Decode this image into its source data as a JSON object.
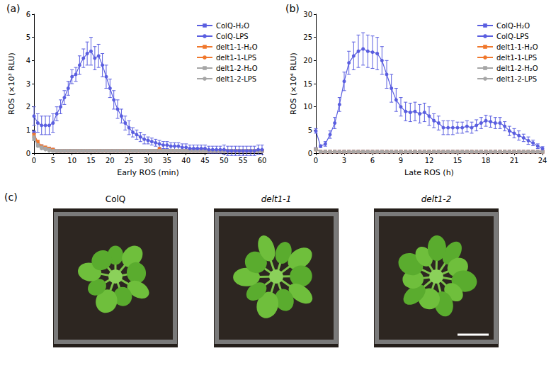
{
  "chart_data": [
    {
      "type": "line",
      "title": "(a)",
      "x_label": "Early ROS (min)",
      "y_label": "ROS (×10³ RLU)",
      "xlim": [
        0,
        60
      ],
      "xticks": [
        0,
        5,
        10,
        15,
        20,
        25,
        30,
        35,
        40,
        45,
        50,
        55,
        60
      ],
      "ylim": [
        0,
        6
      ],
      "yticks": [
        0,
        1,
        2,
        3,
        4,
        5,
        6
      ],
      "grid": false,
      "legend": "upper right",
      "x": [
        0,
        1,
        2,
        3,
        4,
        5,
        6,
        7,
        8,
        9,
        10,
        11,
        12,
        13,
        14,
        15,
        16,
        17,
        18,
        19,
        20,
        21,
        22,
        23,
        24,
        25,
        26,
        27,
        28,
        29,
        30,
        31,
        32,
        33,
        34,
        35,
        36,
        37,
        38,
        39,
        40,
        41,
        42,
        43,
        44,
        45,
        46,
        47,
        48,
        49,
        50,
        51,
        52,
        53,
        54,
        55,
        56,
        57,
        58,
        59,
        60
      ],
      "series": [
        {
          "name": "ColQ-H₂O",
          "color": "#5a5ee0",
          "marker": "square",
          "values": [
            0.9,
            0.4,
            0.3,
            0.2,
            0.2,
            0.15,
            0.1,
            0.1,
            0.1,
            0.1,
            0.1,
            0.1,
            0.1,
            0.1,
            0.1,
            0.1,
            0.1,
            0.1,
            0.1,
            0.1,
            0.1,
            0.1,
            0.1,
            0.1,
            0.1,
            0.1,
            0.1,
            0.1,
            0.1,
            0.1,
            0.1,
            0.1,
            0.1,
            0.1,
            0.1,
            0.1,
            0.1,
            0.1,
            0.1,
            0.1,
            0.1,
            0.1,
            0.1,
            0.1,
            0.1,
            0.1,
            0.1,
            0.1,
            0.1,
            0.1,
            0.1,
            0.1,
            0.1,
            0.1,
            0.1,
            0.1,
            0.1,
            0.1,
            0.1,
            0.1,
            0.1
          ]
        },
        {
          "name": "ColQ-LPS",
          "color": "#5a5ee0",
          "marker": "circle",
          "values": [
            1.6,
            1.3,
            1.2,
            1.2,
            1.2,
            1.3,
            1.7,
            2.0,
            2.4,
            2.8,
            3.3,
            3.4,
            3.8,
            4.1,
            4.3,
            4.4,
            4.1,
            4.2,
            3.8,
            3.3,
            2.8,
            2.3,
            1.9,
            1.6,
            1.3,
            1.1,
            0.9,
            0.8,
            0.7,
            0.6,
            0.55,
            0.5,
            0.45,
            0.4,
            0.35,
            0.35,
            0.3,
            0.3,
            0.3,
            0.25,
            0.25,
            0.2,
            0.2,
            0.2,
            0.2,
            0.2,
            0.15,
            0.15,
            0.15,
            0.15,
            0.15,
            0.1,
            0.1,
            0.1,
            0.1,
            0.1,
            0.1,
            0.1,
            0.1,
            0.15,
            0.15
          ],
          "errors": [
            0.4,
            0.4,
            0.4,
            0.4,
            0.4,
            0.4,
            0.3,
            0.3,
            0.3,
            0.3,
            0.3,
            0.3,
            0.4,
            0.4,
            0.5,
            0.6,
            0.5,
            0.5,
            0.5,
            0.5,
            0.4,
            0.4,
            0.4,
            0.3,
            0.3,
            0.3,
            0.2,
            0.2,
            0.2,
            0.2,
            0.15,
            0.15,
            0.15,
            0.15,
            0.15,
            0.15,
            0.15,
            0.15,
            0.15,
            0.15,
            0.15,
            0.15,
            0.15,
            0.15,
            0.15,
            0.15,
            0.15,
            0.15,
            0.15,
            0.15,
            0.2,
            0.2,
            0.2,
            0.2,
            0.2,
            0.2,
            0.2,
            0.2,
            0.2,
            0.2,
            0.2
          ]
        },
        {
          "name": "delt1-1-H₂O",
          "color": "#f0782d",
          "marker": "square",
          "values": [
            0.8,
            0.5,
            0.3,
            0.25,
            0.2,
            0.15,
            0.1,
            0.1,
            0.1,
            0.1,
            0.1,
            0.1,
            0.1,
            0.1,
            0.1,
            0.1,
            0.1,
            0.1,
            0.1,
            0.1,
            0.1,
            0.1,
            0.1,
            0.1,
            0.1,
            0.1,
            0.1,
            0.1,
            0.1,
            0.1,
            0.1,
            0.1,
            0.1,
            0.1,
            0.1,
            0.1,
            0.1,
            0.1,
            0.1,
            0.1,
            0.1,
            0.1,
            0.1,
            0.1,
            0.1,
            0.1,
            0.1,
            0.1,
            0.1,
            0.1,
            0.1,
            0.1,
            0.1,
            0.1,
            0.1,
            0.1,
            0.1,
            0.1,
            0.1,
            0.1,
            0.1
          ]
        },
        {
          "name": "delt1-1-LPS",
          "color": "#f0782d",
          "marker": "circle",
          "values": [
            0.7,
            0.4,
            0.3,
            0.2,
            0.2,
            0.15,
            0.1,
            0.1,
            0.1,
            0.1,
            0.1,
            0.1,
            0.1,
            0.1,
            0.1,
            0.1,
            0.1,
            0.1,
            0.1,
            0.1,
            0.1,
            0.1,
            0.1,
            0.1,
            0.1,
            0.1,
            0.1,
            0.1,
            0.1,
            0.1,
            0.1,
            0.1,
            0.1,
            0.2,
            0.1,
            0.1,
            0.1,
            0.1,
            0.1,
            0.1,
            0.1,
            0.1,
            0.1,
            0.1,
            0.1,
            0.1,
            0.1,
            0.1,
            0.1,
            0.1,
            0.1,
            0.1,
            0.1,
            0.1,
            0.1,
            0.1,
            0.1,
            0.1,
            0.1,
            0.1,
            0.1
          ]
        },
        {
          "name": "delt1-2-H₂O",
          "color": "#a6a6a6",
          "marker": "square",
          "values": [
            0.6,
            0.35,
            0.25,
            0.2,
            0.15,
            0.1,
            0.1,
            0.1,
            0.1,
            0.1,
            0.1,
            0.1,
            0.1,
            0.1,
            0.1,
            0.1,
            0.1,
            0.1,
            0.1,
            0.1,
            0.1,
            0.1,
            0.1,
            0.1,
            0.1,
            0.1,
            0.1,
            0.1,
            0.1,
            0.1,
            0.1,
            0.1,
            0.1,
            0.1,
            0.1,
            0.1,
            0.1,
            0.1,
            0.1,
            0.1,
            0.1,
            0.1,
            0.1,
            0.1,
            0.1,
            0.1,
            0.1,
            0.1,
            0.1,
            0.1,
            0.1,
            0.1,
            0.1,
            0.1,
            0.1,
            0.1,
            0.1,
            0.1,
            0.1,
            0.1,
            0.1
          ]
        },
        {
          "name": "delt1-2-LPS",
          "color": "#a6a6a6",
          "marker": "circle",
          "values": [
            0.7,
            0.3,
            0.2,
            0.15,
            0.1,
            0.1,
            0.1,
            0.1,
            0.1,
            0.1,
            0.1,
            0.1,
            0.1,
            0.1,
            0.1,
            0.1,
            0.1,
            0.1,
            0.1,
            0.1,
            0.1,
            0.1,
            0.1,
            0.1,
            0.1,
            0.1,
            0.1,
            0.1,
            0.1,
            0.1,
            0.1,
            0.1,
            0.1,
            0.1,
            0.1,
            0.1,
            0.1,
            0.1,
            0.1,
            0.1,
            0.1,
            0.1,
            0.1,
            0.1,
            0.1,
            0.1,
            0.1,
            0.1,
            0.1,
            0.1,
            0.1,
            0.1,
            0.1,
            0.1,
            0.1,
            0.1,
            0.1,
            0.1,
            0.1,
            0.1,
            0.1
          ]
        }
      ]
    },
    {
      "type": "line",
      "title": "(b)",
      "x_label": "Late ROS (h)",
      "y_label": "ROS (×10⁴ RLU)",
      "xlim": [
        0,
        24
      ],
      "xticks": [
        0,
        3,
        6,
        9,
        12,
        15,
        18,
        21,
        24
      ],
      "ylim": [
        0,
        30
      ],
      "yticks": [
        0,
        5,
        10,
        15,
        20,
        25,
        30
      ],
      "grid": false,
      "legend": "upper right",
      "x": [
        0,
        0.5,
        1,
        1.5,
        2,
        2.5,
        3,
        3.5,
        4,
        4.5,
        5,
        5.5,
        6,
        6.5,
        7,
        7.5,
        8,
        8.5,
        9,
        9.5,
        10,
        10.5,
        11,
        11.5,
        12,
        12.5,
        13,
        13.5,
        14,
        14.5,
        15,
        15.5,
        16,
        16.5,
        17,
        17.5,
        18,
        18.5,
        19,
        19.5,
        20,
        20.5,
        21,
        21.5,
        22,
        22.5,
        23,
        23.5,
        24
      ],
      "series": [
        {
          "name": "ColQ-H₂O",
          "color": "#5a5ee0",
          "marker": "square",
          "values": [
            0.9,
            0.3,
            0.3,
            0.3,
            0.3,
            0.3,
            0.3,
            0.3,
            0.3,
            0.3,
            0.3,
            0.3,
            0.3,
            0.3,
            0.3,
            0.3,
            0.3,
            0.3,
            0.3,
            0.3,
            0.3,
            0.3,
            0.3,
            0.3,
            0.3,
            0.3,
            0.3,
            0.3,
            0.3,
            0.3,
            0.3,
            0.3,
            0.3,
            0.3,
            0.3,
            0.3,
            0.3,
            0.3,
            0.3,
            0.3,
            0.3,
            0.3,
            0.3,
            0.3,
            0.3,
            0.3,
            0.3,
            0.3,
            0.3
          ]
        },
        {
          "name": "ColQ-LPS",
          "color": "#5a5ee0",
          "marker": "circle",
          "values": [
            4.8,
            1.5,
            2,
            4,
            6.5,
            10.5,
            15.5,
            19.5,
            21,
            22,
            22.5,
            22,
            21.8,
            21.5,
            20,
            17,
            14,
            11.5,
            10,
            9,
            8.8,
            9,
            8.5,
            8.8,
            8,
            7,
            6.5,
            5.5,
            5.5,
            5.5,
            5.5,
            5.5,
            5.8,
            5.5,
            6,
            6.5,
            7,
            6.8,
            6.5,
            6.5,
            5.8,
            4.8,
            4.3,
            3.8,
            3.3,
            2.7,
            2.2,
            1.5,
            1
          ],
          "errors": [
            0.5,
            0.3,
            0.5,
            0.8,
            1.2,
            1.5,
            2,
            2.5,
            3,
            3.5,
            3.5,
            3.5,
            3.5,
            3.5,
            3,
            3,
            3,
            2.5,
            2,
            2,
            2,
            2,
            2,
            2,
            2,
            1.5,
            1.5,
            1.5,
            1.5,
            1.5,
            1.2,
            1.2,
            1.2,
            1.2,
            1.2,
            1.2,
            1.2,
            1.2,
            1.2,
            1.2,
            1,
            1,
            1,
            1,
            0.8,
            0.8,
            0.6,
            0.5,
            0.4
          ]
        },
        {
          "name": "delt1-1-H₂O",
          "color": "#f0782d",
          "marker": "square",
          "values": [
            0.8,
            0.3,
            0.3,
            0.3,
            0.3,
            0.3,
            0.3,
            0.3,
            0.3,
            0.3,
            0.3,
            0.3,
            0.3,
            0.3,
            0.3,
            0.3,
            0.3,
            0.3,
            0.3,
            0.3,
            0.3,
            0.3,
            0.3,
            0.3,
            0.3,
            0.3,
            0.3,
            0.3,
            0.3,
            0.3,
            0.3,
            0.3,
            0.3,
            0.3,
            0.3,
            0.3,
            0.3,
            0.3,
            0.3,
            0.3,
            0.3,
            0.3,
            0.3,
            0.3,
            0.3,
            0.3,
            0.3,
            0.3,
            0.3
          ]
        },
        {
          "name": "delt1-1-LPS",
          "color": "#f0782d",
          "marker": "circle",
          "values": [
            0.8,
            0.3,
            0.3,
            0.3,
            0.3,
            0.3,
            0.3,
            0.3,
            0.3,
            0.3,
            0.3,
            0.3,
            0.3,
            0.3,
            0.3,
            0.3,
            0.3,
            0.3,
            0.3,
            0.3,
            0.3,
            0.3,
            0.3,
            0.3,
            0.3,
            0.3,
            0.3,
            0.3,
            0.3,
            0.3,
            0.3,
            0.3,
            0.3,
            0.3,
            0.3,
            0.3,
            0.3,
            0.3,
            0.3,
            0.3,
            0.3,
            0.3,
            0.3,
            0.3,
            0.3,
            0.3,
            0.3,
            0.3,
            0.3
          ]
        },
        {
          "name": "delt1-2-H₂O",
          "color": "#a6a6a6",
          "marker": "square",
          "values": [
            0.8,
            0.3,
            0.3,
            0.3,
            0.3,
            0.3,
            0.3,
            0.3,
            0.3,
            0.3,
            0.3,
            0.3,
            0.3,
            0.3,
            0.3,
            0.3,
            0.3,
            0.3,
            0.3,
            0.3,
            0.3,
            0.3,
            0.3,
            0.3,
            0.3,
            0.3,
            0.3,
            0.3,
            0.3,
            0.3,
            0.3,
            0.3,
            0.3,
            0.3,
            0.3,
            0.3,
            0.3,
            0.3,
            0.3,
            0.3,
            0.3,
            0.3,
            0.3,
            0.3,
            0.3,
            0.3,
            0.3,
            0.3,
            0.3
          ]
        },
        {
          "name": "delt1-2-LPS",
          "color": "#a6a6a6",
          "marker": "circle",
          "values": [
            0.8,
            0.3,
            0.3,
            0.3,
            0.3,
            0.3,
            0.3,
            0.3,
            0.3,
            0.3,
            0.3,
            0.3,
            0.3,
            0.3,
            0.3,
            0.3,
            0.3,
            0.3,
            0.3,
            0.3,
            0.3,
            0.3,
            0.3,
            0.3,
            0.3,
            0.3,
            0.3,
            0.3,
            0.3,
            0.3,
            0.3,
            0.3,
            0.3,
            0.3,
            0.3,
            0.3,
            0.3,
            0.3,
            0.3,
            0.3,
            0.3,
            0.3,
            0.3,
            0.3,
            0.3,
            0.3,
            0.3,
            0.3,
            0.3
          ]
        }
      ]
    }
  ],
  "photo_panel": {
    "label": "(c)",
    "captions": [
      "ColQ",
      "delt1-1",
      "delt1-2"
    ]
  }
}
